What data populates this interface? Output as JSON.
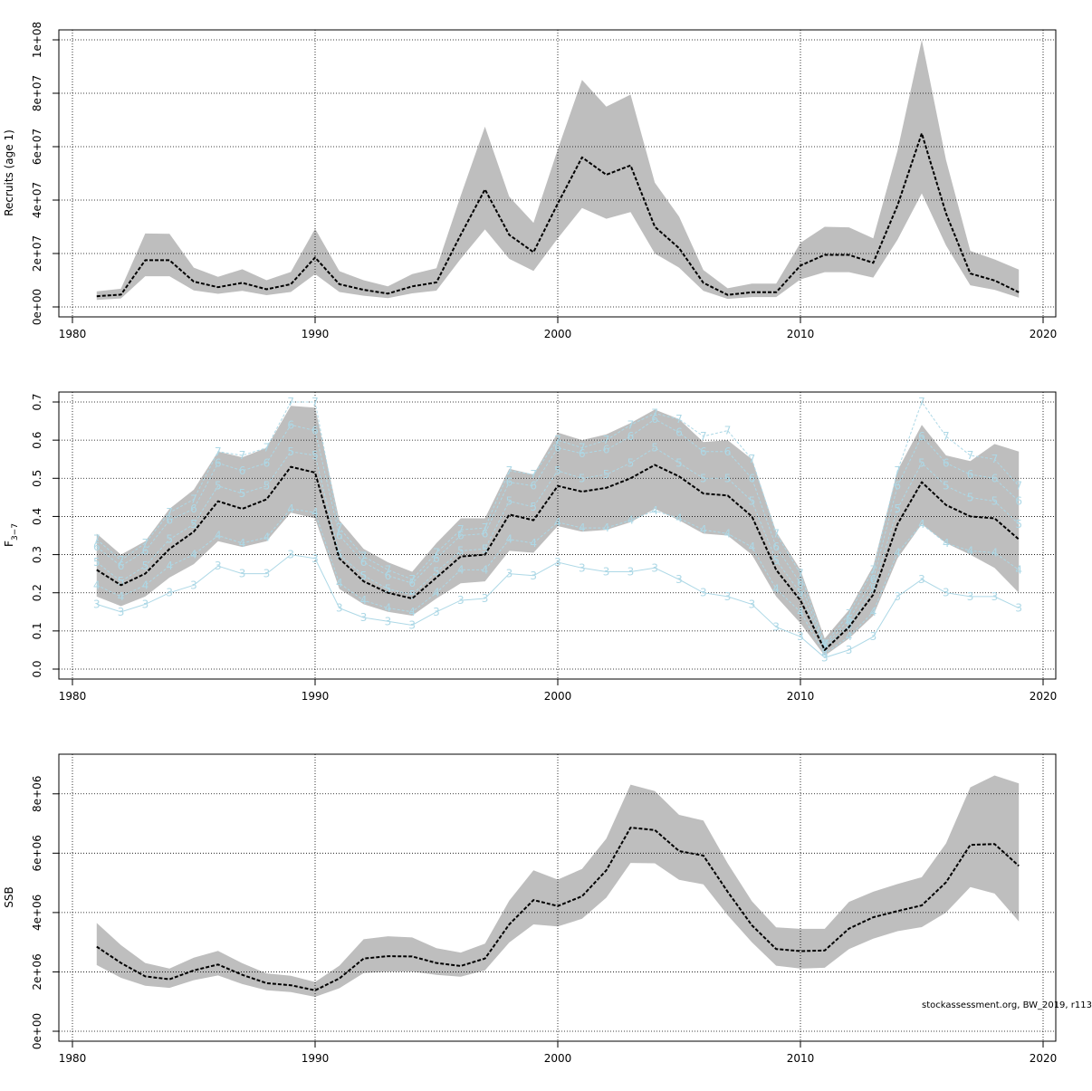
{
  "credit": "stockassessment.org, BW_2019, r113",
  "colors": {
    "band": "#bebebe",
    "line": "#000000",
    "overlay": "#add8e6",
    "grid": "#000000"
  },
  "chart_data": [
    {
      "type": "line",
      "ylabel": "Recruits (age 1)",
      "xlim": [
        1980,
        2020
      ],
      "ylim": [
        0,
        100000000
      ],
      "x_ticks": [
        "1980",
        "1990",
        "2000",
        "2010",
        "2020"
      ],
      "y_ticks": [
        0,
        20000000,
        40000000,
        60000000,
        80000000,
        100000000
      ],
      "y_tick_labels": [
        "0e+00",
        "2e+07",
        "4e+07",
        "6e+07",
        "8e+07",
        "1e+08"
      ],
      "grid": true,
      "x": [
        1981,
        1982,
        1983,
        1984,
        1985,
        1986,
        1987,
        1988,
        1989,
        1990,
        1991,
        1992,
        1993,
        1994,
        1995,
        1996,
        1997,
        1998,
        1999,
        2000,
        2001,
        2002,
        2003,
        2004,
        2005,
        2006,
        2007,
        2008,
        2009,
        2010,
        2011,
        2012,
        2013,
        2014,
        2015,
        2016,
        2017,
        2018,
        2019
      ],
      "estimate": [
        4000000,
        4600000,
        17500000,
        17500000,
        9500000,
        7400000,
        9000000,
        6600000,
        8500000,
        18500000,
        8500000,
        6400000,
        5000000,
        7700000,
        9200000,
        27000000,
        44000000,
        27000000,
        20500000,
        38700000,
        56000000,
        49500000,
        53000000,
        30000000,
        22000000,
        9000000,
        4500000,
        5500000,
        5500000,
        15500000,
        19500000,
        19500000,
        16500000,
        38000000,
        65000000,
        35000000,
        12500000,
        9900000,
        5500000
      ],
      "lower": [
        2600000,
        3200000,
        11500000,
        11500000,
        6200000,
        4900000,
        6000000,
        4400000,
        5600000,
        12300000,
        5600000,
        4200000,
        3300000,
        5100000,
        6100000,
        18000000,
        29000000,
        18000000,
        13500000,
        25700000,
        37000000,
        33000000,
        35500000,
        20000000,
        14700000,
        6000000,
        3000000,
        3700000,
        3700000,
        10300000,
        13000000,
        13000000,
        11000000,
        25200000,
        42500000,
        23000000,
        8100000,
        6400000,
        3500000
      ],
      "upper": [
        5800000,
        6800000,
        27500000,
        27400000,
        14700000,
        11300000,
        14100000,
        10000000,
        13100000,
        29300000,
        13400000,
        10000000,
        7700000,
        12300000,
        14500000,
        41600000,
        67500000,
        41300000,
        31500000,
        59000000,
        85000000,
        75000000,
        79500000,
        46500000,
        33800000,
        13800000,
        7000000,
        8700000,
        8700000,
        24000000,
        30000000,
        29800000,
        25700000,
        58500000,
        100000000,
        55000000,
        21000000,
        17800000,
        14000000
      ]
    },
    {
      "type": "line",
      "ylabel": "F",
      "ylabel_sub": "3−7",
      "xlim": [
        1980,
        2020
      ],
      "ylim": [
        0,
        0.7
      ],
      "x_ticks": [
        "1980",
        "1990",
        "2000",
        "2010",
        "2020"
      ],
      "y_ticks": [
        0,
        0.1,
        0.2,
        0.3,
        0.4,
        0.5,
        0.6,
        0.7
      ],
      "y_tick_labels": [
        "0.0",
        "0.1",
        "0.2",
        "0.3",
        "0.4",
        "0.5",
        "0.6",
        "0.7"
      ],
      "grid": true,
      "x": [
        1981,
        1982,
        1983,
        1984,
        1985,
        1986,
        1987,
        1988,
        1989,
        1990,
        1991,
        1992,
        1993,
        1994,
        1995,
        1996,
        1997,
        1998,
        1999,
        2000,
        2001,
        2002,
        2003,
        2004,
        2005,
        2006,
        2007,
        2008,
        2009,
        2010,
        2011,
        2012,
        2013,
        2014,
        2015,
        2016,
        2017,
        2018,
        2019
      ],
      "estimate": [
        0.26,
        0.22,
        0.25,
        0.315,
        0.36,
        0.44,
        0.42,
        0.445,
        0.53,
        0.515,
        0.29,
        0.23,
        0.2,
        0.185,
        0.24,
        0.295,
        0.3,
        0.405,
        0.39,
        0.48,
        0.465,
        0.475,
        0.5,
        0.535,
        0.505,
        0.46,
        0.455,
        0.4,
        0.26,
        0.18,
        0.05,
        0.11,
        0.195,
        0.38,
        0.49,
        0.43,
        0.4,
        0.395,
        0.34
      ],
      "lower": [
        0.19,
        0.165,
        0.19,
        0.24,
        0.275,
        0.335,
        0.32,
        0.335,
        0.41,
        0.395,
        0.21,
        0.17,
        0.15,
        0.14,
        0.185,
        0.225,
        0.23,
        0.31,
        0.305,
        0.375,
        0.36,
        0.365,
        0.385,
        0.42,
        0.39,
        0.355,
        0.35,
        0.3,
        0.19,
        0.12,
        0.035,
        0.08,
        0.14,
        0.29,
        0.38,
        0.33,
        0.3,
        0.265,
        0.2
      ],
      "upper": [
        0.355,
        0.3,
        0.335,
        0.42,
        0.47,
        0.57,
        0.555,
        0.58,
        0.69,
        0.685,
        0.39,
        0.315,
        0.28,
        0.255,
        0.33,
        0.395,
        0.395,
        0.525,
        0.51,
        0.62,
        0.6,
        0.615,
        0.645,
        0.68,
        0.655,
        0.595,
        0.6,
        0.55,
        0.36,
        0.26,
        0.08,
        0.155,
        0.27,
        0.52,
        0.64,
        0.56,
        0.545,
        0.59,
        0.57
      ],
      "age_series": [
        {
          "label": "3",
          "values": [
            0.17,
            0.15,
            0.17,
            0.2,
            0.22,
            0.27,
            0.25,
            0.25,
            0.3,
            0.29,
            0.16,
            0.135,
            0.125,
            0.115,
            0.15,
            0.18,
            0.185,
            0.25,
            0.245,
            0.28,
            0.265,
            0.255,
            0.255,
            0.265,
            0.235,
            0.2,
            0.19,
            0.17,
            0.11,
            0.085,
            0.03,
            0.05,
            0.085,
            0.19,
            0.235,
            0.2,
            0.19,
            0.19,
            0.16
          ]
        },
        {
          "label": "4",
          "values": [
            0.22,
            0.19,
            0.22,
            0.27,
            0.3,
            0.35,
            0.33,
            0.345,
            0.42,
            0.41,
            0.225,
            0.18,
            0.16,
            0.15,
            0.2,
            0.26,
            0.26,
            0.34,
            0.33,
            0.385,
            0.37,
            0.37,
            0.39,
            0.415,
            0.395,
            0.365,
            0.355,
            0.32,
            0.21,
            0.15,
            0.04,
            0.085,
            0.15,
            0.305,
            0.38,
            0.33,
            0.31,
            0.305,
            0.26
          ]
        },
        {
          "label": "5",
          "values": [
            0.28,
            0.23,
            0.27,
            0.34,
            0.38,
            0.48,
            0.46,
            0.48,
            0.57,
            0.56,
            0.3,
            0.245,
            0.21,
            0.195,
            0.255,
            0.31,
            0.315,
            0.44,
            0.425,
            0.52,
            0.5,
            0.51,
            0.54,
            0.58,
            0.54,
            0.5,
            0.5,
            0.44,
            0.285,
            0.2,
            0.055,
            0.115,
            0.21,
            0.42,
            0.54,
            0.48,
            0.45,
            0.44,
            0.38
          ]
        },
        {
          "label": "6",
          "values": [
            0.32,
            0.27,
            0.31,
            0.39,
            0.42,
            0.54,
            0.52,
            0.54,
            0.64,
            0.625,
            0.35,
            0.28,
            0.245,
            0.225,
            0.29,
            0.35,
            0.355,
            0.49,
            0.48,
            0.58,
            0.565,
            0.575,
            0.61,
            0.655,
            0.62,
            0.57,
            0.57,
            0.5,
            0.32,
            0.225,
            0.06,
            0.13,
            0.235,
            0.48,
            0.61,
            0.54,
            0.51,
            0.5,
            0.44
          ]
        },
        {
          "label": "7",
          "values": [
            0.34,
            0.285,
            0.33,
            0.41,
            0.445,
            0.57,
            0.56,
            0.58,
            0.7,
            0.7,
            0.37,
            0.295,
            0.26,
            0.235,
            0.305,
            0.365,
            0.37,
            0.52,
            0.51,
            0.6,
            0.58,
            0.6,
            0.64,
            0.67,
            0.655,
            0.61,
            0.625,
            0.55,
            0.355,
            0.25,
            0.065,
            0.145,
            0.26,
            0.52,
            0.7,
            0.61,
            0.56,
            0.55,
            0.48
          ]
        }
      ]
    },
    {
      "type": "line",
      "ylabel": "SSB",
      "xlim": [
        1980,
        2020
      ],
      "ylim": [
        0,
        9000000
      ],
      "x_ticks": [
        "1980",
        "1990",
        "2000",
        "2010",
        "2020"
      ],
      "y_ticks": [
        0,
        2000000,
        4000000,
        6000000,
        8000000
      ],
      "y_tick_labels": [
        "0e+00",
        "2e+06",
        "4e+06",
        "6e+06",
        "8e+06"
      ],
      "grid": true,
      "x": [
        1981,
        1982,
        1983,
        1984,
        1985,
        1986,
        1987,
        1988,
        1989,
        1990,
        1991,
        1992,
        1993,
        1994,
        1995,
        1996,
        1997,
        1998,
        1999,
        2000,
        2001,
        2002,
        2003,
        2004,
        2005,
        2006,
        2007,
        2008,
        2009,
        2010,
        2011,
        2012,
        2013,
        2014,
        2015,
        2016,
        2017,
        2018,
        2019
      ],
      "estimate": [
        2850000,
        2300000,
        1850000,
        1750000,
        2050000,
        2250000,
        1900000,
        1620000,
        1550000,
        1380000,
        1780000,
        2450000,
        2530000,
        2520000,
        2300000,
        2200000,
        2450000,
        3600000,
        4420000,
        4220000,
        4550000,
        5420000,
        6860000,
        6780000,
        6070000,
        5920000,
        4700000,
        3570000,
        2770000,
        2700000,
        2720000,
        3460000,
        3840000,
        4050000,
        4240000,
        5020000,
        6280000,
        6310000,
        5570000
      ],
      "lower": [
        2230000,
        1800000,
        1530000,
        1460000,
        1720000,
        1880000,
        1590000,
        1380000,
        1320000,
        1160000,
        1450000,
        1960000,
        2010000,
        2010000,
        1900000,
        1840000,
        2050000,
        2990000,
        3600000,
        3530000,
        3790000,
        4500000,
        5670000,
        5660000,
        5100000,
        4950000,
        3910000,
        3000000,
        2210000,
        2110000,
        2140000,
        2770000,
        3120000,
        3370000,
        3510000,
        4000000,
        4860000,
        4640000,
        3700000
      ],
      "upper": [
        3650000,
        2900000,
        2300000,
        2110000,
        2480000,
        2710000,
        2290000,
        1950000,
        1870000,
        1660000,
        2210000,
        3100000,
        3200000,
        3160000,
        2800000,
        2650000,
        2950000,
        4400000,
        5420000,
        5110000,
        5470000,
        6490000,
        8310000,
        8090000,
        7290000,
        7100000,
        5660000,
        4380000,
        3500000,
        3450000,
        3450000,
        4360000,
        4700000,
        4960000,
        5190000,
        6330000,
        8220000,
        8620000,
        8350000
      ]
    }
  ]
}
